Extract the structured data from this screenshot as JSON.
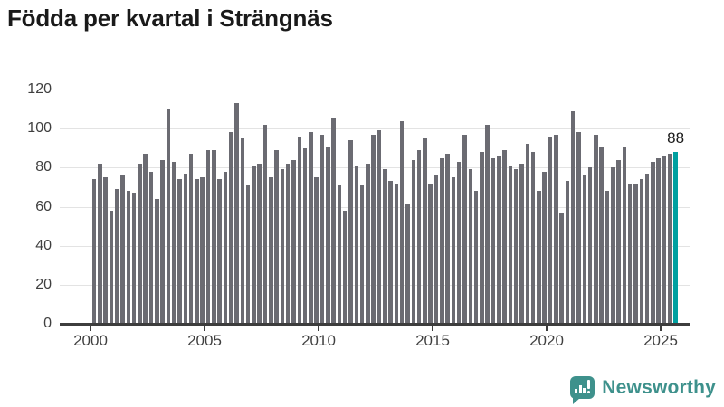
{
  "header": {
    "title": "Födda per kvartal i Strängnäs"
  },
  "chart_data": {
    "type": "bar",
    "title": "Födda per kvartal i Strängnäs",
    "x_axis": {
      "granularity": "quarter",
      "period_start": "2000 Q1",
      "period_end": "2025 Q3",
      "tick_labels": [
        "2000",
        "2005",
        "2010",
        "2015",
        "2020",
        "2025"
      ]
    },
    "y_axis": {
      "ticks": [
        0,
        20,
        40,
        60,
        80,
        100,
        120
      ],
      "range": [
        0,
        120
      ],
      "grid": true
    },
    "values": [
      74,
      82,
      75,
      58,
      69,
      76,
      68,
      67,
      82,
      87,
      78,
      64,
      84,
      110,
      83,
      74,
      77,
      87,
      74,
      75,
      89,
      89,
      74,
      78,
      98,
      113,
      95,
      71,
      81,
      82,
      102,
      75,
      89,
      79,
      82,
      84,
      96,
      90,
      98,
      75,
      97,
      91,
      105,
      71,
      58,
      94,
      81,
      71,
      82,
      97,
      99,
      79,
      73,
      72,
      104,
      61,
      84,
      89,
      95,
      72,
      76,
      85,
      87,
      75,
      83,
      97,
      79,
      68,
      88,
      102,
      85,
      86,
      89,
      81,
      79,
      82,
      92,
      88,
      68,
      78,
      96,
      97,
      57,
      73,
      109,
      98,
      76,
      80,
      97,
      91,
      68,
      80,
      84,
      91,
      72,
      72,
      74,
      77,
      83,
      85,
      86,
      87,
      88
    ],
    "highlight": {
      "index": 102,
      "value": 88,
      "label": "88"
    },
    "legend": "none",
    "colors": {
      "bar": "#6b6b72",
      "highlight": "#00a0a0",
      "grid": "#e3e3e3",
      "axis": "#3d3d3d",
      "tick_text": "#3f3f3f",
      "title_text": "#1a1a1a"
    }
  },
  "footer": {
    "brand": {
      "name": "Newsworthy",
      "color": "#3e918c",
      "icon": "newsworthy-chart-bubble-icon"
    }
  }
}
